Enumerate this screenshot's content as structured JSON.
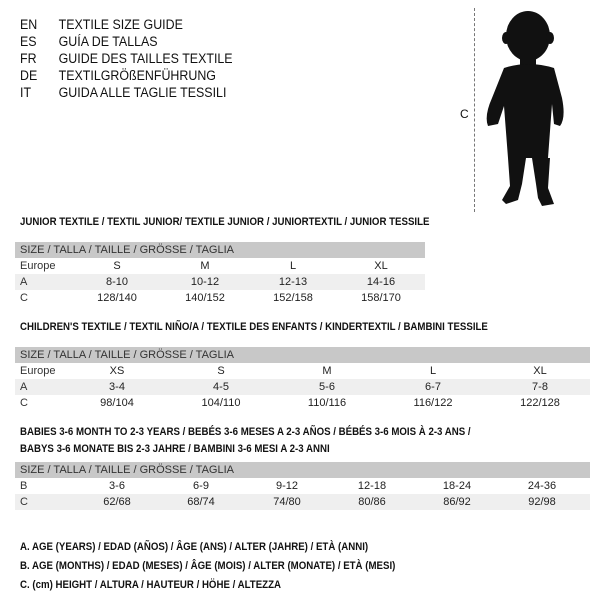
{
  "languages": [
    {
      "code": "EN",
      "name": "TEXTILE SIZE GUIDE"
    },
    {
      "code": "ES",
      "name": "GUÍA DE TALLAS"
    },
    {
      "code": "FR",
      "name": "GUIDE DES TAILLES TEXTILE"
    },
    {
      "code": "DE",
      "name": "TEXTILGRÖßENFÜHRUNG"
    },
    {
      "code": "IT",
      "name": "GUIDA ALLE TAGLIE TESSILI"
    }
  ],
  "figure": {
    "label": "C"
  },
  "size_header": "SIZE / TALLA / TAILLE / GRÖSSE / TAGLIA",
  "junior": {
    "title": "JUNIOR TEXTILE / TEXTIL JUNIOR/ TEXTILE JUNIOR / JUNIORTEXTIL / JUNIOR TESSILE",
    "rows": [
      {
        "label": "Europe",
        "cells": [
          "S",
          "M",
          "L",
          "XL"
        ]
      },
      {
        "label": "A",
        "cells": [
          "8-10",
          "10-12",
          "12-13",
          "14-16"
        ]
      },
      {
        "label": "C",
        "cells": [
          "128/140",
          "140/152",
          "152/158",
          "158/170"
        ]
      }
    ]
  },
  "children": {
    "title": "CHILDREN'S TEXTILE / TEXTIL NIÑO/A / TEXTILE DES ENFANTS / KINDERTEXTIL / BAMBINI TESSILE",
    "rows": [
      {
        "label": "Europe",
        "cells": [
          "XS",
          "S",
          "M",
          "L",
          "XL"
        ]
      },
      {
        "label": "A",
        "cells": [
          "3-4",
          "4-5",
          "5-6",
          "6-7",
          "7-8"
        ]
      },
      {
        "label": "C",
        "cells": [
          "98/104",
          "104/110",
          "110/116",
          "116/122",
          "122/128"
        ]
      }
    ]
  },
  "babies": {
    "title_line1": "BABIES 3-6 MONTH TO 2-3 YEARS / BEBÉS 3-6 MESES A 2-3 AÑOS / BÉBÉS 3-6 MOIS À 2-3 ANS /",
    "title_line2": "BABYS 3-6 MONATE BIS 2-3 JAHRE / BAMBINI 3-6 MESI A 2-3 ANNI",
    "rows": [
      {
        "label": "B",
        "cells": [
          "3-6",
          "6-9",
          "9-12",
          "12-18",
          "18-24",
          "24-36"
        ]
      },
      {
        "label": "C",
        "cells": [
          "62/68",
          "68/74",
          "74/80",
          "80/86",
          "86/92",
          "92/98"
        ]
      }
    ]
  },
  "legend": [
    "A. AGE (YEARS) / EDAD (AÑOS) / ÂGE (ANS) / ALTER (JAHRE) / ETÀ (ANNI)",
    "B. AGE (MONTHS) / EDAD (MESES) / ÂGE (MOIS) / ALTER (MONATE) / ETÀ (MESI)",
    "C. (cm) HEIGHT / ALTURA / HAUTEUR / HÖHE / ALTEZZA"
  ]
}
